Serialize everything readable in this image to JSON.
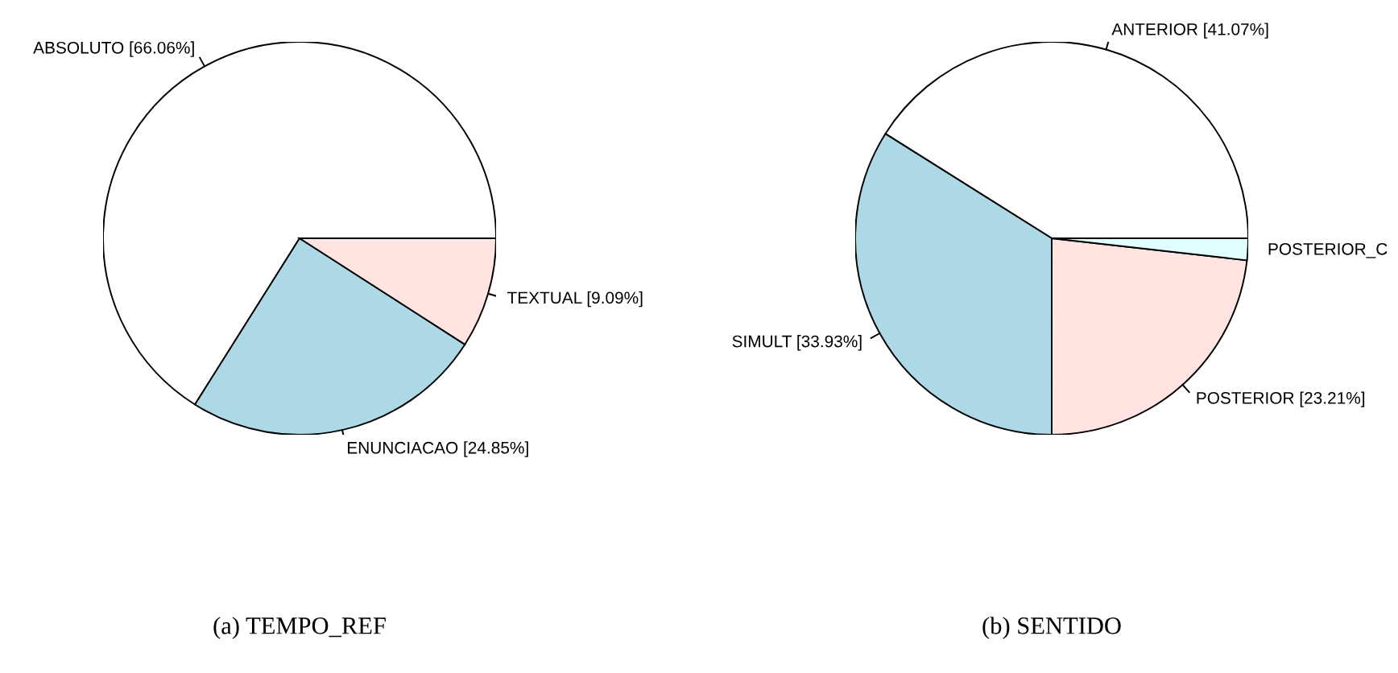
{
  "chart_data": [
    {
      "type": "pie",
      "subtitle": "(a) TEMPO_REF",
      "categories": [
        "ABSOLUTO",
        "ENUNCIACAO",
        "TEXTUAL"
      ],
      "values": [
        66.06,
        24.85,
        9.09
      ],
      "value_labels": [
        "[66.06%]",
        "[24.85%]",
        "[9.09%]"
      ],
      "colors": [
        "#ffffff",
        "#add8e6",
        "#ffe4e1"
      ]
    },
    {
      "type": "pie",
      "subtitle": "(b) SENTIDO",
      "categories": [
        "ANTERIOR",
        "SIMULT",
        "POSTERIOR",
        "POSTERIOR_C"
      ],
      "values": [
        41.07,
        33.93,
        23.21,
        1.79
      ],
      "value_labels": [
        "[41.07%]",
        "[33.93%]",
        "[23.21%]",
        null
      ],
      "colors": [
        "#ffffff",
        "#add8e6",
        "#ffe4e1",
        "#e0ffff"
      ]
    }
  ]
}
